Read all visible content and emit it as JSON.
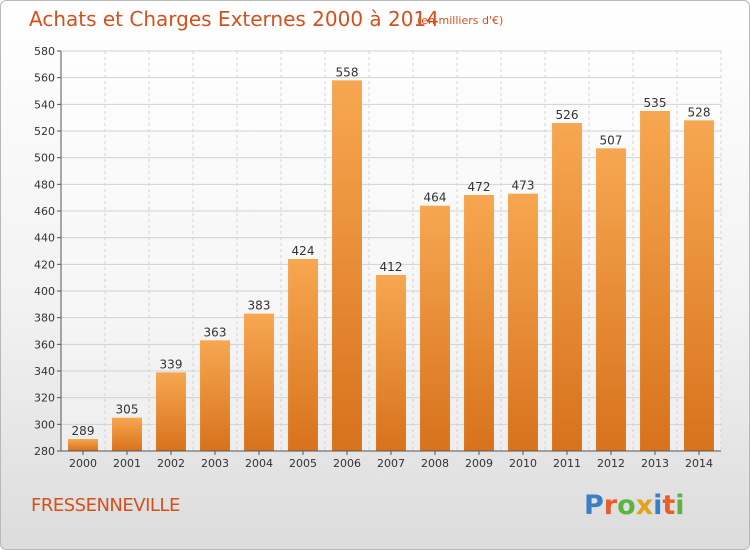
{
  "header": {
    "title": "Achats et Charges Externes 2000 à 2014",
    "subtitle": "(en milliers d'€)"
  },
  "footer": {
    "place": "FRESSENNEVILLE",
    "logo_text": "Proxiti",
    "logo_colors": [
      "#3a7dc9",
      "#e85d2a",
      "#5db33f",
      "#e2a21b",
      "#3a7dc9",
      "#e85d2a",
      "#5db33f"
    ]
  },
  "colors": {
    "bar_light": "#f7a751",
    "bar_dark": "#d8721c",
    "grid": "#d2d2d2",
    "axis": "#555555",
    "text": "#333333"
  },
  "chart_data": {
    "type": "bar",
    "categories": [
      "2000",
      "2001",
      "2002",
      "2003",
      "2004",
      "2005",
      "2006",
      "2007",
      "2008",
      "2009",
      "2010",
      "2011",
      "2012",
      "2013",
      "2014"
    ],
    "values": [
      289,
      305,
      339,
      363,
      383,
      424,
      558,
      412,
      464,
      472,
      473,
      526,
      507,
      535,
      528
    ],
    "ylim": [
      280,
      580
    ],
    "yticks": [
      280,
      300,
      320,
      340,
      360,
      380,
      400,
      420,
      440,
      460,
      480,
      500,
      520,
      540,
      560,
      580
    ],
    "grid": true,
    "data_labels": true
  }
}
